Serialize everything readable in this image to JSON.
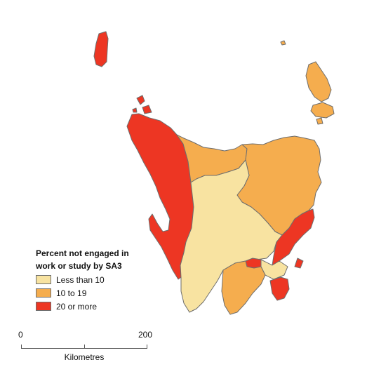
{
  "legend": {
    "title_line1": "Percent not engaged in",
    "title_line2": "work or study by SA3",
    "items": [
      {
        "label": "Less than 10",
        "color": "#f8e3a1"
      },
      {
        "label": "10 to 19",
        "color": "#f5ad4e"
      },
      {
        "label": "20 or more",
        "color": "#ed3623"
      }
    ]
  },
  "scale_bar": {
    "ticks": [
      "0",
      "200"
    ],
    "unit": "Kilometres"
  },
  "colors": {
    "outline": "#6e6e6e",
    "background": "#ffffff"
  }
}
